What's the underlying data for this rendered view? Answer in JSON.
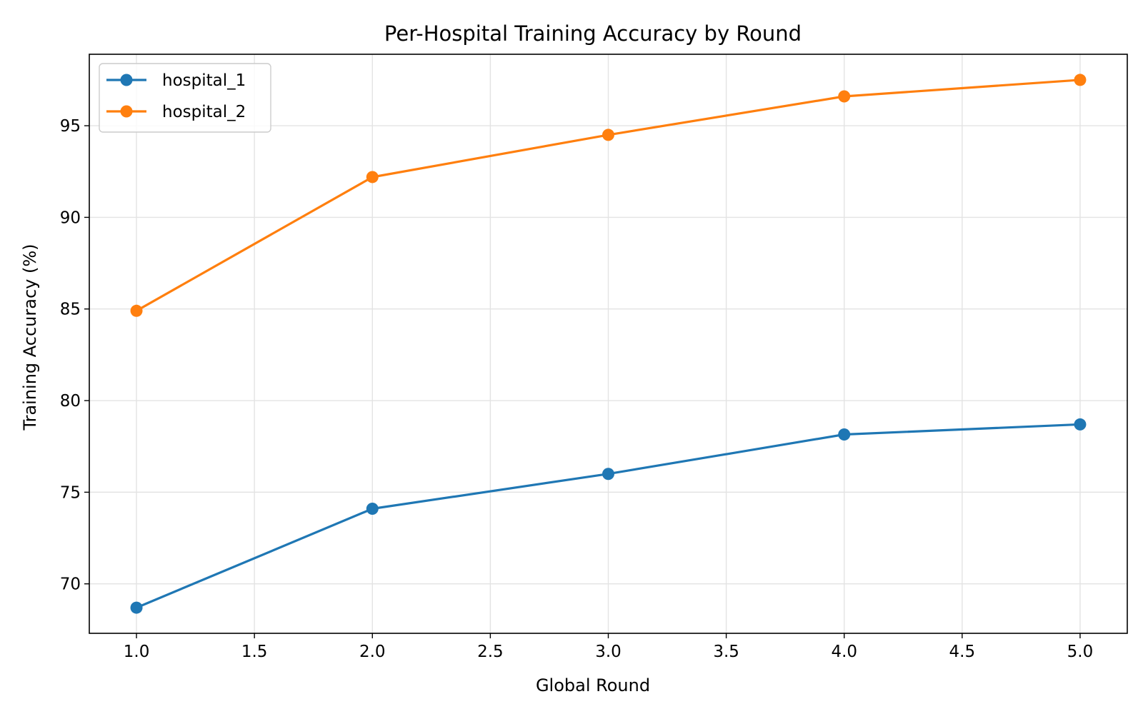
{
  "chart_data": {
    "type": "line",
    "title": "Per-Hospital Training Accuracy by Round",
    "xlabel": "Global Round",
    "ylabel": "Training Accuracy (%)",
    "x": [
      1.0,
      2.0,
      3.0,
      4.0,
      5.0
    ],
    "xlim": [
      0.8,
      5.2
    ],
    "ylim": [
      67.3,
      98.9
    ],
    "x_ticks": [
      "1.0",
      "1.5",
      "2.0",
      "2.5",
      "3.0",
      "3.5",
      "4.0",
      "4.5",
      "5.0"
    ],
    "y_ticks": [
      "70",
      "75",
      "80",
      "85",
      "90",
      "95"
    ],
    "grid": true,
    "legend_position": "top-left",
    "series": [
      {
        "name": "hospital_1",
        "color": "#1f77b4",
        "marker": "circle",
        "values": [
          68.7,
          74.1,
          76.0,
          78.15,
          78.7
        ]
      },
      {
        "name": "hospital_2",
        "color": "#ff7f0e",
        "marker": "circle",
        "values": [
          84.9,
          92.2,
          94.5,
          96.6,
          97.5
        ]
      }
    ]
  }
}
